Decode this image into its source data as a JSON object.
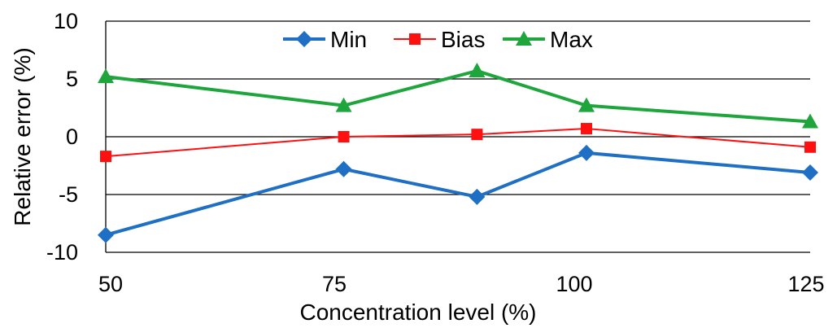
{
  "chart_data": {
    "type": "line",
    "xlabel": "Concentration level (%)",
    "ylabel": "Relative error (%)",
    "ylim": [
      -10,
      10
    ],
    "yticks": [
      10,
      5,
      0,
      -5,
      -10
    ],
    "xticks": [
      50,
      75,
      100,
      125
    ],
    "grid": "horizontal",
    "legend_position": "top",
    "x": [
      51,
      76,
      90,
      101.5,
      125
    ],
    "series": [
      {
        "name": "Min",
        "color": "#1f6fc5",
        "marker": "diamond",
        "values": [
          -8.5,
          -2.8,
          -5.2,
          -1.4,
          -3.1
        ]
      },
      {
        "name": "Bias",
        "color": "#ff1010",
        "marker": "square",
        "values": [
          -1.7,
          0.0,
          0.2,
          0.7,
          -0.9
        ]
      },
      {
        "name": "Max",
        "color": "#1ea53c",
        "marker": "triangle",
        "values": [
          5.2,
          2.7,
          5.7,
          2.7,
          1.3
        ]
      }
    ]
  }
}
